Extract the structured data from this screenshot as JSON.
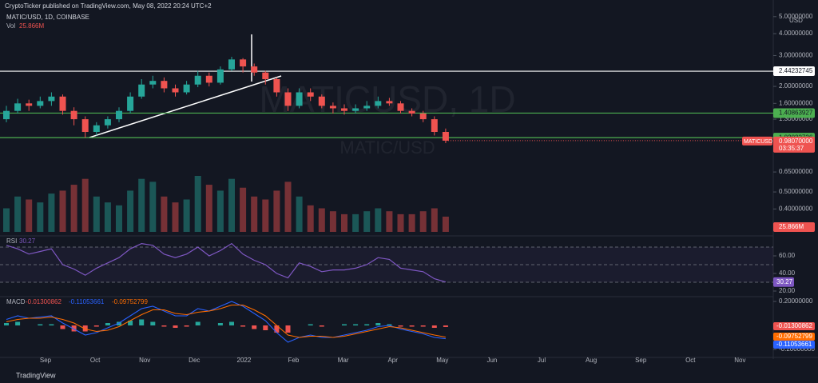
{
  "header": {
    "publisher": "CryptoTicker published on TradingView.com, May 08, 2022 20:24 UTC+2",
    "symbol": "MATIC/USD, 1D, COINBASE",
    "vol_title": "Vol",
    "watermark": "MATICUSD, 1D",
    "watermark_sub": "MATIC/USD",
    "currency": "USD"
  },
  "time_axis": [
    "Sep",
    "Oct",
    "Nov",
    "Dec",
    "2022",
    "Feb",
    "Mar",
    "Apr",
    "May",
    "Jun",
    "Jul",
    "Aug",
    "Sep",
    "Oct",
    "Nov"
  ],
  "footer": {
    "brand": "TradingView"
  },
  "chart_data": [
    {
      "type": "candlestick",
      "log_scale": true,
      "up_color": "#26a69a",
      "down_color": "#ef5350",
      "open": [
        1.3,
        1.45,
        1.6,
        1.55,
        1.65,
        1.75,
        1.45,
        1.3,
        1.1,
        1.2,
        1.3,
        1.45,
        1.75,
        2.05,
        2.15,
        1.95,
        1.85,
        2.05,
        2.3,
        2.1,
        2.5,
        2.85,
        2.6,
        2.4,
        2.2,
        1.85,
        1.55,
        1.85,
        1.75,
        1.55,
        1.5,
        1.45,
        1.5,
        1.55,
        1.65,
        1.6,
        1.45,
        1.4,
        1.3,
        1.1
      ],
      "high": [
        1.55,
        1.7,
        1.68,
        1.75,
        1.85,
        1.8,
        1.52,
        1.35,
        1.25,
        1.35,
        1.52,
        1.85,
        2.2,
        2.3,
        2.25,
        2.05,
        2.15,
        2.45,
        2.4,
        2.6,
        2.95,
        2.9,
        2.7,
        2.45,
        2.25,
        1.95,
        1.95,
        1.95,
        1.8,
        1.62,
        1.58,
        1.58,
        1.65,
        1.75,
        1.72,
        1.65,
        1.5,
        1.45,
        1.35,
        1.15
      ],
      "low": [
        1.25,
        1.4,
        1.45,
        1.5,
        1.55,
        1.38,
        1.2,
        1.02,
        1.05,
        1.15,
        1.25,
        1.4,
        1.7,
        1.95,
        1.85,
        1.75,
        1.8,
        1.98,
        2.0,
        2.05,
        2.45,
        2.4,
        2.3,
        2.05,
        1.75,
        1.45,
        1.5,
        1.65,
        1.5,
        1.4,
        1.38,
        1.4,
        1.45,
        1.5,
        1.55,
        1.4,
        1.35,
        1.25,
        1.05,
        0.95
      ],
      "close": [
        1.45,
        1.6,
        1.55,
        1.65,
        1.75,
        1.45,
        1.3,
        1.1,
        1.2,
        1.3,
        1.45,
        1.75,
        2.05,
        2.15,
        1.95,
        1.85,
        2.05,
        2.3,
        2.1,
        2.5,
        2.85,
        2.6,
        2.4,
        2.2,
        1.85,
        1.55,
        1.85,
        1.75,
        1.55,
        1.5,
        1.45,
        1.5,
        1.55,
        1.65,
        1.6,
        1.45,
        1.4,
        1.3,
        1.1,
        0.9807
      ],
      "last_label": "0.98070000",
      "last_name": "MATICUSD",
      "countdown": "03:35:37",
      "volume": [
        40,
        60,
        55,
        50,
        65,
        70,
        80,
        90,
        60,
        50,
        45,
        70,
        90,
        85,
        60,
        50,
        55,
        95,
        80,
        70,
        90,
        75,
        60,
        55,
        70,
        85,
        60,
        45,
        40,
        35,
        30,
        30,
        35,
        40,
        35,
        30,
        30,
        35,
        40,
        25.866
      ],
      "volume_label": "25.866M",
      "ylim": [
        0.296,
        5.15
      ],
      "yticks": [
        {
          "value": 5,
          "label": "5.00000000"
        },
        {
          "value": 4,
          "label": "4.00000000"
        },
        {
          "value": 3,
          "label": "3.00000000"
        },
        {
          "value": 2,
          "label": "2.00000000"
        },
        {
          "value": 1.6,
          "label": "1.60000000"
        },
        {
          "value": 1.3,
          "label": "1.30000000"
        },
        {
          "value": 0.65,
          "label": "0.65000000"
        },
        {
          "value": 0.5,
          "label": "0.50000000"
        },
        {
          "value": 0.4,
          "label": "0.40000000"
        }
      ],
      "levels": [
        {
          "value": 2.44232745,
          "color": "#ffffff"
        },
        {
          "value": 1.40863927,
          "color": "#4caf50"
        },
        {
          "value": 1.02032726,
          "color": "#4caf50"
        }
      ]
    },
    {
      "type": "line",
      "title": "RSI",
      "color": "#7e57c2",
      "values": [
        72,
        68,
        62,
        65,
        68,
        50,
        45,
        38,
        46,
        52,
        58,
        68,
        74,
        72,
        62,
        58,
        62,
        70,
        60,
        66,
        74,
        62,
        55,
        50,
        40,
        35,
        52,
        48,
        42,
        44,
        44,
        46,
        50,
        58,
        56,
        46,
        44,
        42,
        34,
        30.27
      ],
      "ylim": [
        20,
        80
      ],
      "bands": [
        70,
        50,
        30
      ],
      "yticks": [
        {
          "value": 60,
          "label": "60.00"
        },
        {
          "value": 40,
          "label": "40.00"
        },
        {
          "value": 20,
          "label": "20.00"
        }
      ]
    },
    {
      "type": "macd",
      "title": "MACD",
      "series": [
        {
          "name": "histogram",
          "color": "#ef5350",
          "values": [
            0.02,
            0.03,
            0,
            0.01,
            0.01,
            -0.03,
            -0.05,
            -0.05,
            -0.01,
            0.02,
            0.03,
            0.04,
            0.05,
            0.03,
            -0.01,
            -0.02,
            -0.01,
            0.03,
            0,
            0.02,
            0.03,
            -0.01,
            -0.03,
            -0.04,
            -0.06,
            -0.06,
            0,
            0.01,
            -0.01,
            0,
            0.01,
            0.01,
            0.01,
            0.02,
            0.01,
            -0.01,
            -0.01,
            -0.01,
            -0.02,
            -0.01300862
          ]
        },
        {
          "name": "macd",
          "color": "#2962ff",
          "values": [
            0.05,
            0.08,
            0.06,
            0.07,
            0.08,
            0.02,
            -0.03,
            -0.08,
            -0.06,
            -0.02,
            0.02,
            0.08,
            0.14,
            0.16,
            0.12,
            0.08,
            0.08,
            0.14,
            0.12,
            0.16,
            0.2,
            0.16,
            0.1,
            0.04,
            -0.06,
            -0.14,
            -0.1,
            -0.08,
            -0.1,
            -0.1,
            -0.08,
            -0.06,
            -0.04,
            -0.01,
            0.0,
            -0.03,
            -0.05,
            -0.07,
            -0.1,
            -0.11053661
          ]
        },
        {
          "name": "signal",
          "color": "#ff6d00",
          "values": [
            0.03,
            0.05,
            0.06,
            0.06,
            0.07,
            0.05,
            0.02,
            -0.03,
            -0.05,
            -0.04,
            -0.01,
            0.04,
            0.09,
            0.13,
            0.13,
            0.1,
            0.09,
            0.11,
            0.12,
            0.14,
            0.17,
            0.17,
            0.13,
            0.08,
            0.0,
            -0.08,
            -0.1,
            -0.09,
            -0.09,
            -0.1,
            -0.09,
            -0.07,
            -0.05,
            -0.03,
            -0.01,
            -0.02,
            -0.04,
            -0.06,
            -0.08,
            -0.09752799
          ]
        }
      ],
      "ylim": [
        -0.2,
        0.2
      ],
      "yticks": [
        {
          "value": 0.2,
          "label": "0.20000000"
        },
        {
          "value": -0.2,
          "label": "-0.20000000"
        }
      ]
    }
  ]
}
